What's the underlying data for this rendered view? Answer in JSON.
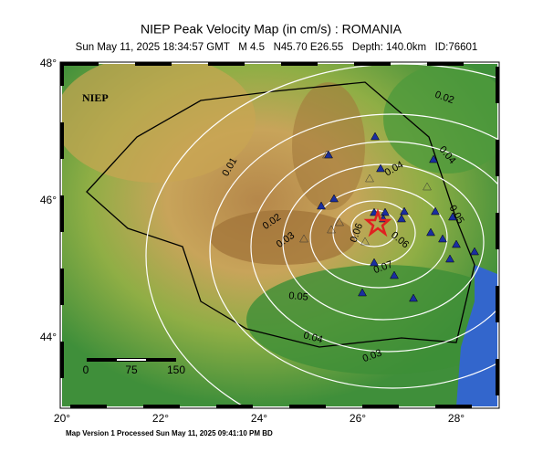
{
  "header": {
    "title": "NIEP Peak Velocity Map (in cm/s) : ROMANIA",
    "subtitle": "Sun May 11, 2025 18:34:57 GMT   M 4.5   N45.70 E26.55   Depth: 140.0km   ID:76601"
  },
  "map": {
    "agency_label": "NIEP",
    "lat_labels": [
      "48°",
      "46°",
      "44°"
    ],
    "lon_labels": [
      "20°",
      "22°",
      "24°",
      "26°",
      "28°"
    ],
    "contour_labels": [
      "0.01",
      "0.02",
      "0.02",
      "0.03",
      "0.03",
      "0.04",
      "0.04",
      "0.04",
      "0.05",
      "0.06",
      "0.06",
      "0.07",
      "0.05"
    ],
    "scale_labels": [
      "0",
      "75",
      "150"
    ]
  },
  "footer": {
    "text": "Map Version 1 Processed Sun May 11, 2025 09:41:10 PM BD"
  }
}
